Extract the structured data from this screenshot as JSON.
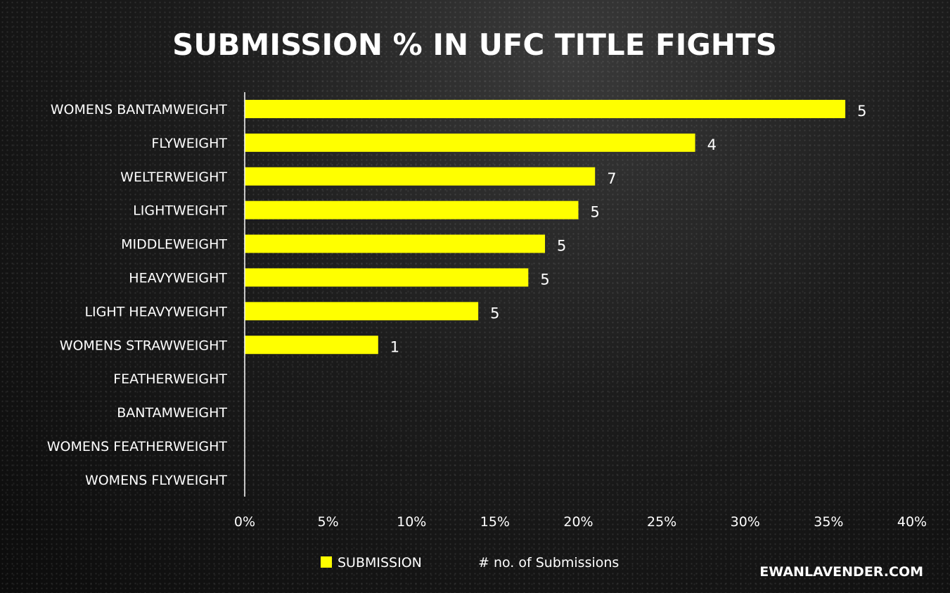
{
  "chart_data": {
    "type": "bar",
    "orientation": "horizontal",
    "title": "SUBMISSION % IN UFC TITLE FIGHTS",
    "categories": [
      "WOMENS BANTAMWEIGHT",
      "FLYWEIGHT",
      "WELTERWEIGHT",
      "LIGHTWEIGHT",
      "MIDDLEWEIGHT",
      "HEAVYWEIGHT",
      "LIGHT HEAVYWEIGHT",
      "WOMENS STRAWWEIGHT",
      "FEATHERWEIGHT",
      "BANTAMWEIGHT",
      "WOMENS FEATHERWEIGHT",
      "WOMENS FLYWEIGHT"
    ],
    "series": [
      {
        "name": "SUBMISSION",
        "values": [
          36,
          27,
          21,
          20,
          18,
          17,
          14,
          8,
          0,
          0,
          0,
          0
        ],
        "color": "#ffff00"
      },
      {
        "name": "# no. of Submissions",
        "values": [
          5,
          4,
          7,
          5,
          5,
          5,
          5,
          1,
          null,
          null,
          null,
          null
        ]
      }
    ],
    "xlim": [
      0,
      40
    ],
    "xticks": [
      "0%",
      "5%",
      "10%",
      "15%",
      "20%",
      "25%",
      "30%",
      "35%",
      "40%"
    ],
    "grid": false,
    "legend_position": "bottom"
  },
  "credit": "EWANLAVENDER.COM",
  "colors": {
    "bar": "#ffff00",
    "axis": "#ffffff",
    "text": "#ffffff"
  }
}
